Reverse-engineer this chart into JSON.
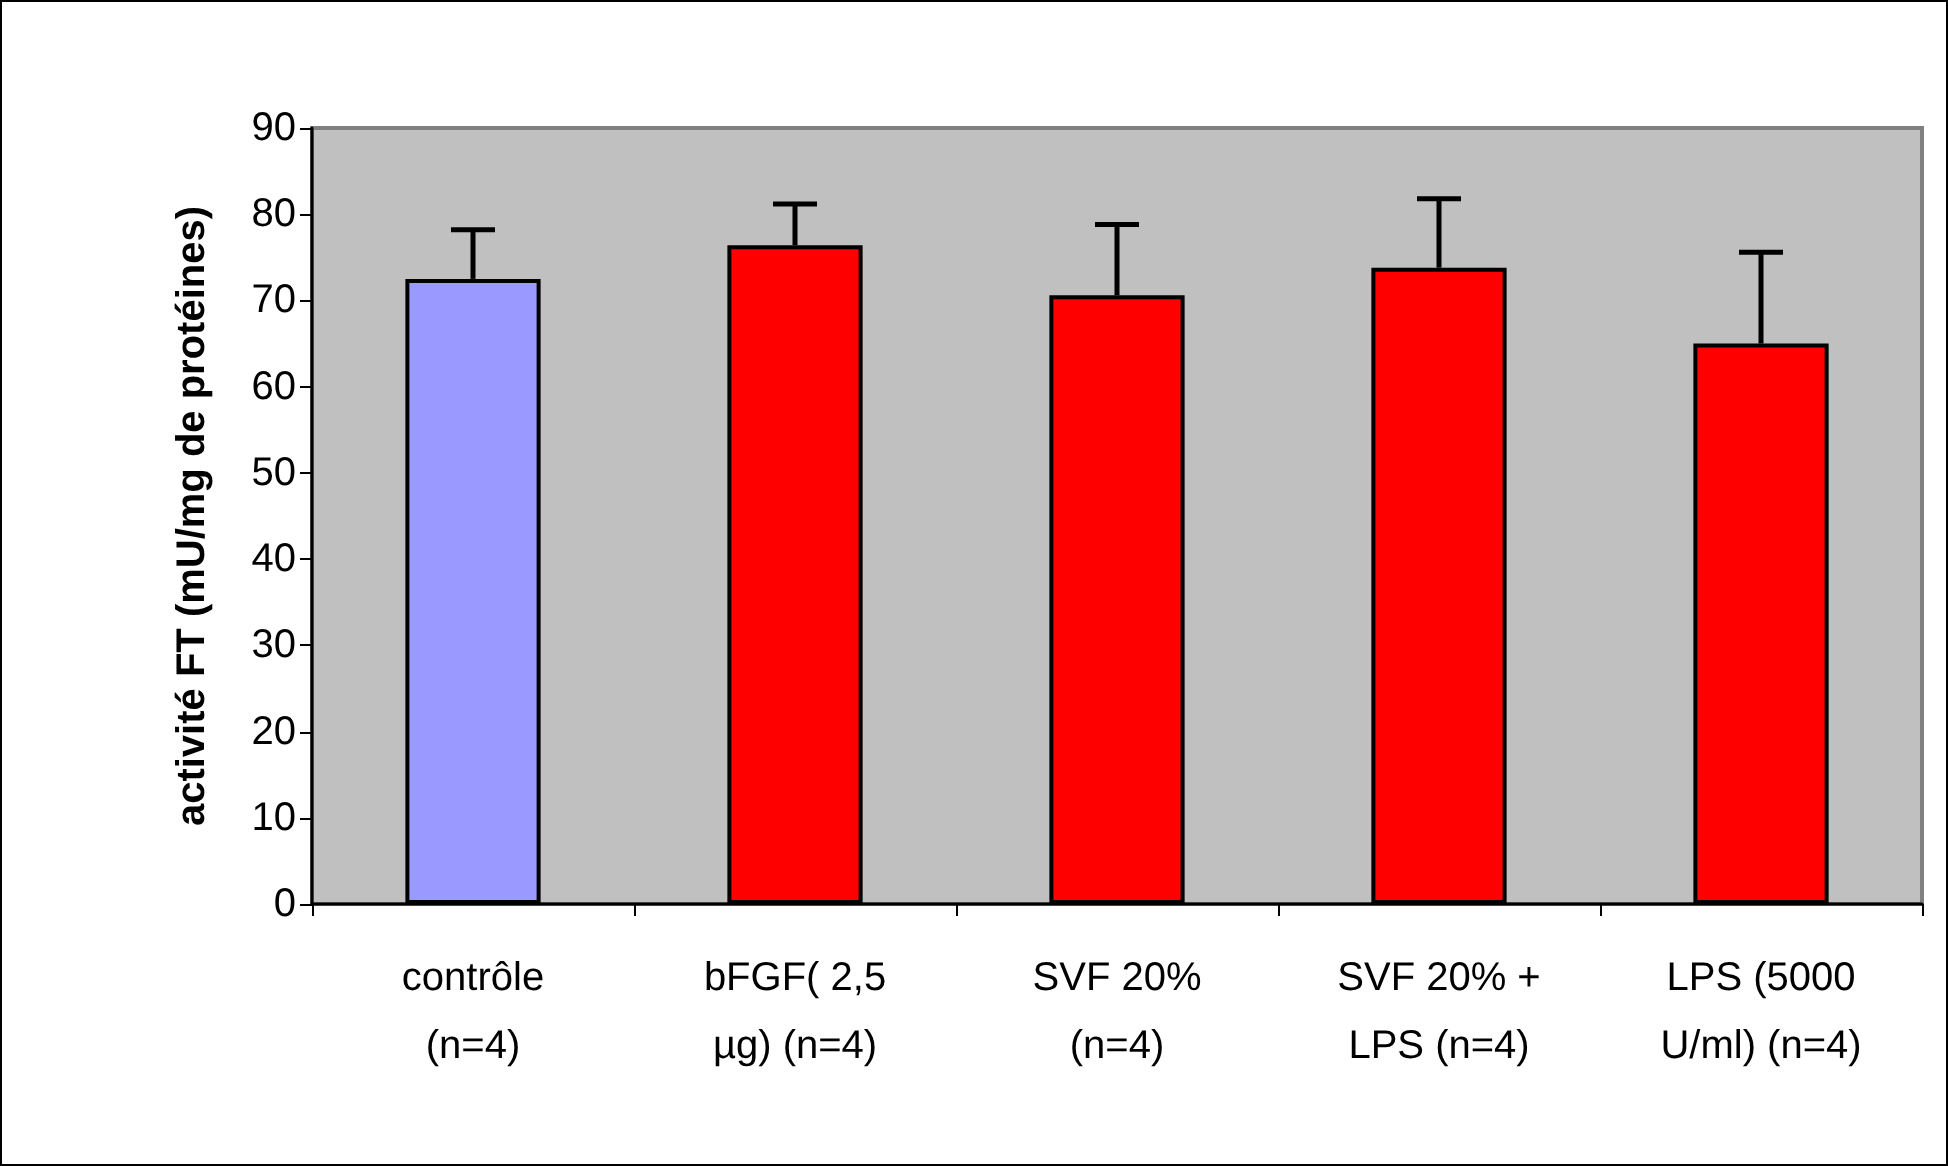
{
  "chart_data": {
    "type": "bar",
    "ylabel": "activité FT (mU/mg de protéines)",
    "categories": [
      "contrôle\n(n=4)",
      "bFGF( 2,5\nµg) (n=4)",
      "SVF 20%\n(n=4)",
      "SVF 20% +\nLPS (n=4)",
      "LPS (5000\nU/ml) (n=4)"
    ],
    "values": [
      72.5,
      76.4,
      70.6,
      73.8,
      65.0
    ],
    "colors": [
      "#9999ff",
      "#ff0000",
      "#ff0000",
      "#ff0000",
      "#ff0000"
    ],
    "errors": [
      [
        72.5,
        78.2
      ],
      [
        76.4,
        81.2
      ],
      [
        70.6,
        78.8
      ],
      [
        73.8,
        81.8
      ],
      [
        65.0,
        75.6
      ]
    ],
    "ylim": [
      0,
      90
    ],
    "yticks": [
      0,
      10,
      20,
      30,
      40,
      50,
      60,
      70,
      80,
      90
    ],
    "grid": false
  }
}
